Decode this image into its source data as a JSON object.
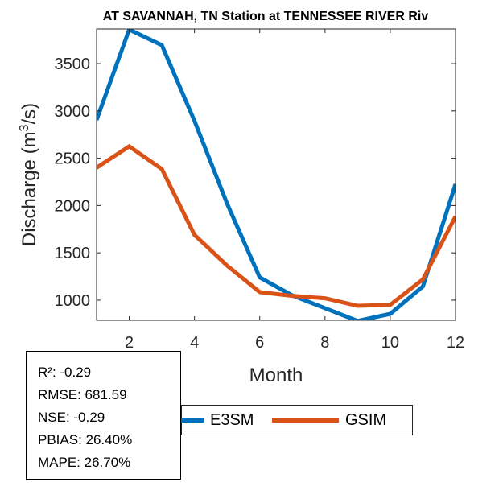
{
  "chart_data": {
    "type": "line",
    "title": "AT SAVANNAH, TN  Station at  TENNESSEE RIVER  Riv",
    "xlabel": "Month",
    "ylabel": "Discharge (m³/s)",
    "ylabel_parts": {
      "prefix": "Discharge (m",
      "sup": "3",
      "suffix": "/s)"
    },
    "x": [
      1,
      2,
      3,
      4,
      5,
      6,
      7,
      8,
      9,
      10,
      11,
      12
    ],
    "xlim": [
      1,
      12
    ],
    "ylim": [
      787,
      3866
    ],
    "xticks": [
      2,
      4,
      6,
      8,
      10,
      12
    ],
    "yticks": [
      1000,
      1500,
      2000,
      2500,
      3000,
      3500
    ],
    "grid": false,
    "legend_placement": "bottom-outside",
    "series": [
      {
        "name": "E3SM",
        "color": "#0072BD",
        "values": [
          2905,
          3860,
          3695,
          2895,
          2020,
          1240,
          1050,
          915,
          780,
          855,
          1145,
          2225
        ]
      },
      {
        "name": "GSIM",
        "color": "#D95319",
        "values": [
          2400,
          2625,
          2385,
          1690,
          1365,
          1085,
          1045,
          1020,
          940,
          950,
          1220,
          1885
        ]
      }
    ]
  },
  "stats": [
    "R²: -0.29",
    "RMSE: 681.59",
    "NSE: -0.29",
    "PBIAS: 26.40%",
    "MAPE: 26.70%"
  ],
  "legend": {
    "items": [
      {
        "label": "E3SM",
        "color": "#0072BD"
      },
      {
        "label": "GSIM",
        "color": "#D95319"
      }
    ]
  }
}
